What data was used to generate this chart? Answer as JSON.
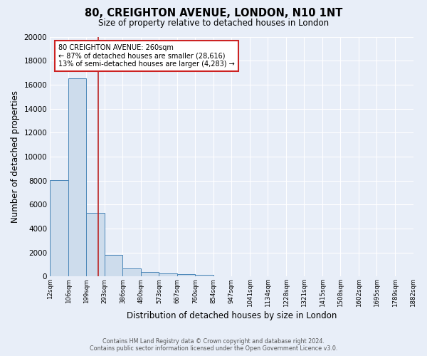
{
  "title1": "80, CREIGHTON AVENUE, LONDON, N10 1NT",
  "title2": "Size of property relative to detached houses in London",
  "xlabel": "Distribution of detached houses by size in London",
  "ylabel": "Number of detached properties",
  "footnote1": "Contains HM Land Registry data © Crown copyright and database right 2024.",
  "footnote2": "Contains public sector information licensed under the Open Government Licence v3.0.",
  "annotation_line1": "80 CREIGHTON AVENUE: 260sqm",
  "annotation_line2": "← 87% of detached houses are smaller (28,616)",
  "annotation_line3": "13% of semi-detached houses are larger (4,283) →",
  "bar_edges": [
    12,
    106,
    199,
    293,
    386,
    480,
    573,
    667,
    760,
    854,
    947,
    1041,
    1134,
    1228,
    1321,
    1415,
    1508,
    1602,
    1695,
    1789,
    1882
  ],
  "bar_heights": [
    8050,
    16500,
    5300,
    1820,
    700,
    370,
    240,
    175,
    150,
    0,
    0,
    0,
    0,
    0,
    0,
    0,
    0,
    0,
    0,
    0
  ],
  "bar_color": "#cddcec",
  "bar_edgecolor": "#4a86b8",
  "vline_x": 260,
  "vline_color": "#bb2222",
  "ylim": [
    0,
    20000
  ],
  "yticks": [
    0,
    2000,
    4000,
    6000,
    8000,
    10000,
    12000,
    14000,
    16000,
    18000,
    20000
  ],
  "xtick_labels": [
    "12sqm",
    "106sqm",
    "199sqm",
    "293sqm",
    "386sqm",
    "480sqm",
    "573sqm",
    "667sqm",
    "760sqm",
    "854sqm",
    "947sqm",
    "1041sqm",
    "1134sqm",
    "1228sqm",
    "1321sqm",
    "1415sqm",
    "1508sqm",
    "1602sqm",
    "1695sqm",
    "1789sqm",
    "1882sqm"
  ],
  "bg_color": "#e8eef8",
  "grid_color": "#ffffff",
  "annotation_box_facecolor": "#ffffff",
  "annotation_box_edgecolor": "#cc2222",
  "title1_fontsize": 10.5,
  "title2_fontsize": 8.5,
  "xlabel_fontsize": 8.5,
  "ylabel_fontsize": 8.5,
  "xtick_fontsize": 6.2,
  "ytick_fontsize": 7.5,
  "footnote_fontsize": 5.8,
  "annotation_fontsize": 7.0
}
